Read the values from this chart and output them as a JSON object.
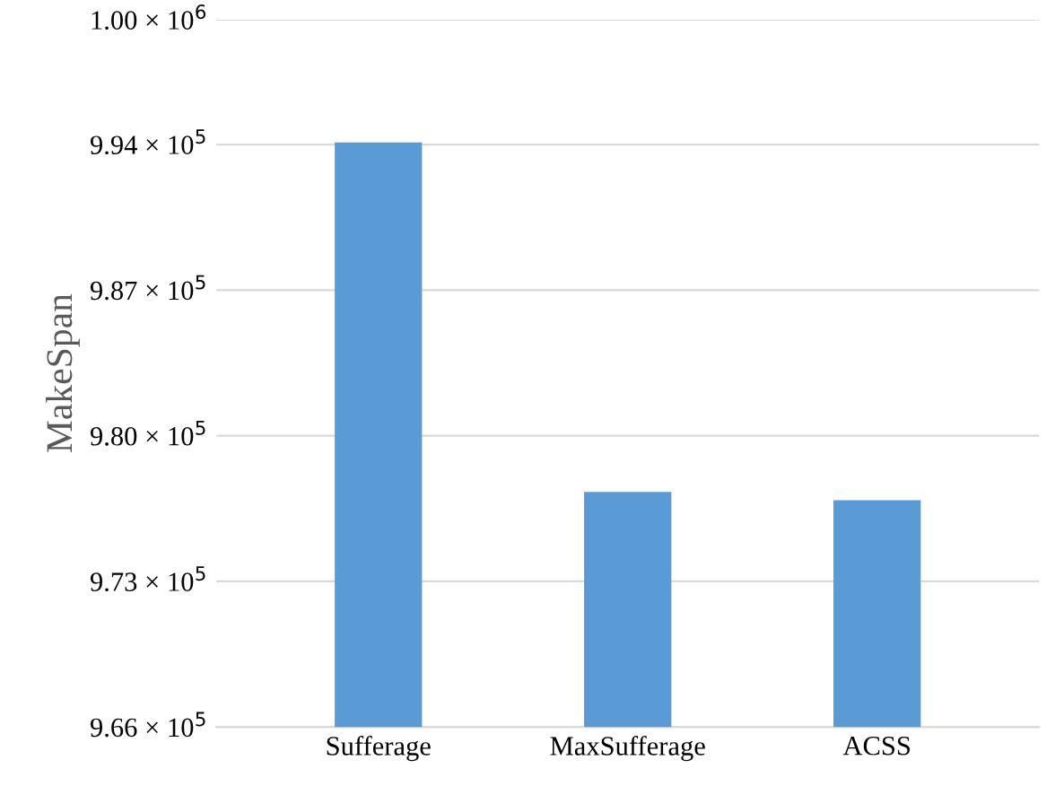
{
  "chart_data": {
    "type": "bar",
    "ylabel": "MakeSpan",
    "categories": [
      "Sufferage",
      "MaxSufferage",
      "ACSS"
    ],
    "values": [
      994100,
      977300,
      976900
    ],
    "color": "#5b9bd5",
    "ylim": [
      966000,
      1000000
    ],
    "yticks": [
      {
        "value": 966000,
        "label": "9.66 × 10$^{5}$"
      },
      {
        "value": 973000,
        "label": "9.73 × 10$^{5}$"
      },
      {
        "value": 980000,
        "label": "9.80 × 10$^{5}$"
      },
      {
        "value": 987000,
        "label": "9.87 × 10$^{5}$"
      },
      {
        "value": 994000,
        "label": "9.94 × 10$^{5}$"
      },
      {
        "value": 1000000,
        "label": "1.00 × 10$^{6}$"
      }
    ],
    "grid": "y"
  }
}
